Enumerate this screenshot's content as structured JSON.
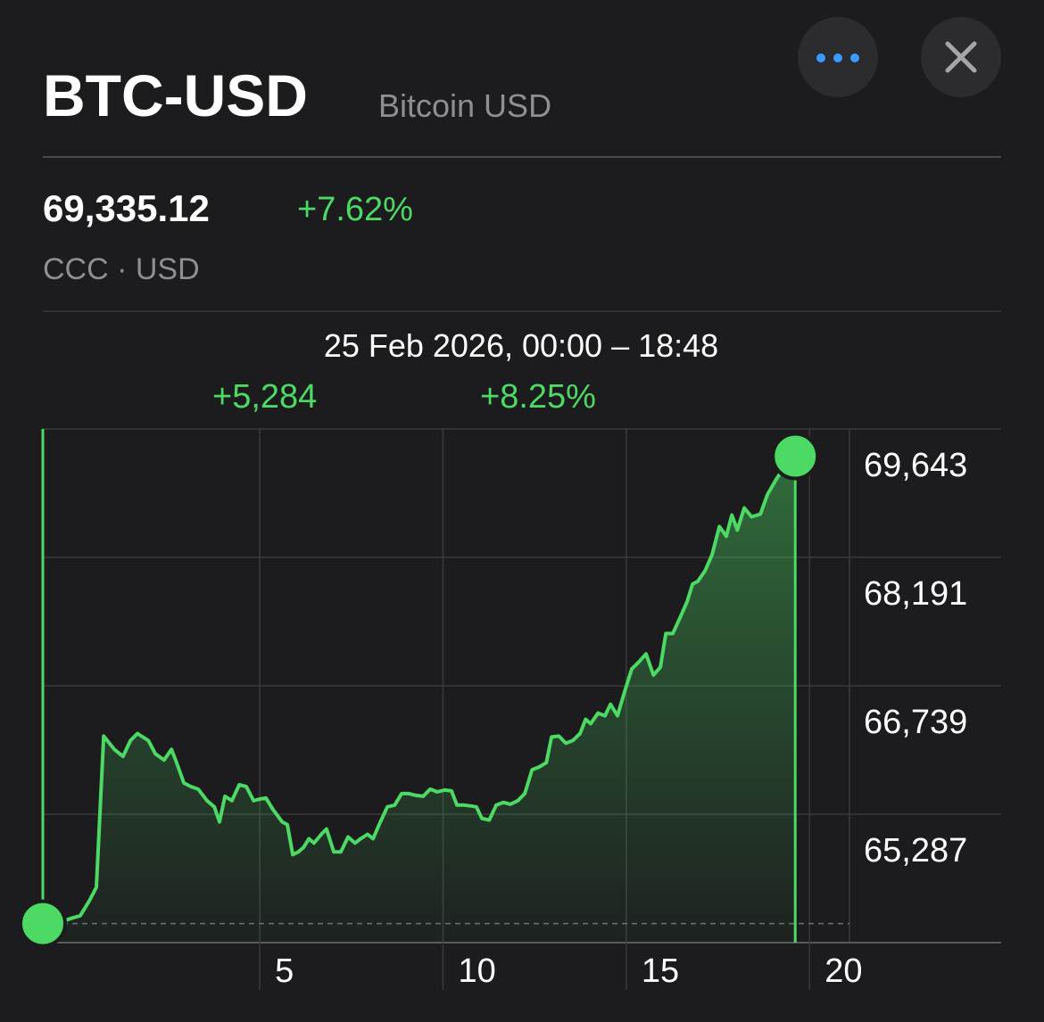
{
  "header": {
    "symbol": "BTC-USD",
    "name": "Bitcoin USD",
    "price": "69,335.12",
    "change": "+7.62%",
    "exchange": "CCC · USD"
  },
  "chart_data": {
    "type": "line",
    "subtitle": "25 Feb 2026, 00:00 – 18:48",
    "annotations": [
      "+5,284",
      "+8.25%"
    ],
    "x": [
      -0.92,
      -0.63,
      -0.14,
      0.1,
      0.35,
      0.54,
      0.74,
      1.03,
      1.27,
      1.47,
      1.66,
      1.96,
      2.15,
      2.39,
      2.59,
      2.73,
      2.93,
      3.12,
      3.32,
      3.56,
      3.76,
      3.9,
      4.05,
      4.24,
      4.44,
      4.63,
      4.83,
      5.02,
      5.17,
      5.36,
      5.61,
      5.75,
      5.9,
      6.05,
      6.19,
      6.34,
      6.48,
      6.68,
      6.82,
      7.02,
      7.21,
      7.41,
      7.6,
      7.75,
      7.94,
      8.09,
      8.29,
      8.48,
      8.68,
      8.87,
      9.07,
      9.26,
      9.46,
      9.65,
      9.84,
      10.04,
      10.23,
      10.38,
      10.57,
      10.77,
      10.91,
      11.06,
      11.26,
      11.45,
      11.65,
      11.84,
      12.04,
      12.23,
      12.43,
      12.62,
      12.82,
      12.96,
      13.16,
      13.35,
      13.54,
      13.74,
      13.89,
      14.03,
      14.23,
      14.42,
      14.57,
      14.76,
      14.96,
      15.15,
      15.35,
      15.54,
      15.74,
      15.93,
      16.08,
      16.27,
      16.47,
      16.66,
      16.81,
      16.95,
      17.15,
      17.34,
      17.54,
      17.73,
      17.88,
      18.03,
      18.22,
      18.42,
      18.66,
      18.85,
      19.1,
      19.34,
      19.61
    ],
    "series": [
      {
        "color": "#4cd964",
        "values": [
          64051,
          64040,
          64110,
          64140,
          64310,
          64460,
          66170,
          66020,
          65940,
          66120,
          66200,
          66120,
          65970,
          65900,
          66020,
          65870,
          65640,
          65600,
          65570,
          65440,
          65370,
          65200,
          65490,
          65440,
          65620,
          65600,
          65440,
          65460,
          65470,
          65340,
          65200,
          65170,
          64830,
          64860,
          64910,
          65010,
          64960,
          65060,
          65120,
          64860,
          64860,
          65030,
          64960,
          65010,
          65060,
          65010,
          65200,
          65370,
          65390,
          65520,
          65520,
          65500,
          65490,
          65570,
          65540,
          65560,
          65550,
          65390,
          65390,
          65380,
          65370,
          65240,
          65220,
          65390,
          65420,
          65400,
          65440,
          65520,
          65790,
          65820,
          65870,
          66160,
          66170,
          66090,
          66120,
          66200,
          66360,
          66310,
          66430,
          66400,
          66530,
          66400,
          66680,
          66930,
          67010,
          67100,
          66860,
          66950,
          67330,
          67330,
          67510,
          67690,
          67890,
          67920,
          68040,
          68220,
          68540,
          68430,
          68670,
          68500,
          68750,
          68650,
          68680,
          68900,
          69080,
          69230,
          69335.12
        ]
      }
    ],
    "xlim": [
      -0.92,
      21.09
    ],
    "ylim": [
      63835,
      69643
    ],
    "xticks": [
      5,
      10,
      15,
      20
    ],
    "yticks": [
      {
        "value": 65287,
        "label": "65,287"
      },
      {
        "value": 66739,
        "label": "66,739"
      },
      {
        "value": 68191,
        "label": "68,191"
      },
      {
        "value": 69643,
        "label": "69,643"
      }
    ],
    "grid": true,
    "reference_line": 64051
  }
}
